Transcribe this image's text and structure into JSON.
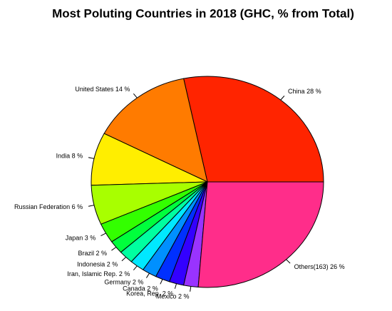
{
  "chart_data": {
    "type": "pie",
    "title": "Most Poluting Countries in 2018 (GHC, % from Total)",
    "categories": [
      "China 28 %",
      "United States 14 %",
      "India 8 %",
      "Russian Federation 6 %",
      "Japan 3 %",
      "Brazil 2 %",
      "Indonesia 2 %",
      "Iran, Islamic Rep. 2 %",
      "Germany 2 %",
      "Canada 2 %",
      "Korea, Rep. 2 %",
      "Mexico 2 %",
      "Others(163) 26 %"
    ],
    "values": [
      28,
      14,
      8,
      6,
      3,
      2,
      2,
      2,
      2,
      2,
      2,
      2,
      26
    ],
    "colors": [
      "#ff2400",
      "#ff7b00",
      "#ffee00",
      "#a8ff00",
      "#33ff00",
      "#00ff3c",
      "#00ffa0",
      "#00e8ff",
      "#0090ff",
      "#0030ff",
      "#3300ff",
      "#9933ff",
      "#ff2d8a"
    ]
  }
}
